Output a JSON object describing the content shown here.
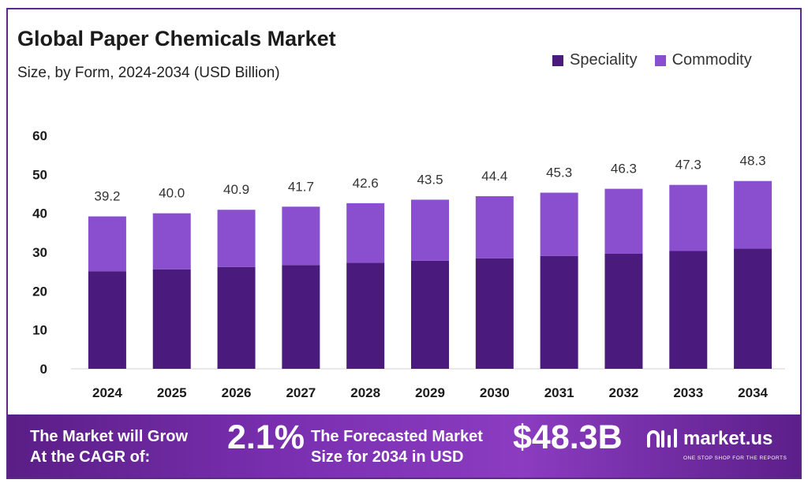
{
  "title": "Global Paper Chemicals Market",
  "subtitle": "Size, by Form, 2024-2034 (USD Billion)",
  "legend": [
    {
      "label": "Speciality",
      "color": "#4a1a7c"
    },
    {
      "label": "Commodity",
      "color": "#8a4fcf"
    }
  ],
  "chart_data": {
    "type": "bar",
    "stacked": true,
    "categories": [
      "2024",
      "2025",
      "2026",
      "2027",
      "2028",
      "2029",
      "2030",
      "2031",
      "2032",
      "2033",
      "2034"
    ],
    "series": [
      {
        "name": "Speciality",
        "color": "#4a1a7c",
        "values": [
          25.1,
          25.6,
          26.2,
          26.7,
          27.3,
          27.8,
          28.4,
          29.0,
          29.6,
          30.3,
          30.9
        ]
      },
      {
        "name": "Commodity",
        "color": "#8a4fcf",
        "values": [
          14.1,
          14.4,
          14.7,
          15.0,
          15.3,
          15.7,
          16.0,
          16.3,
          16.7,
          17.0,
          17.4
        ]
      }
    ],
    "totals": [
      "39.2",
      "40.0",
      "40.9",
      "41.7",
      "42.6",
      "43.5",
      "44.4",
      "45.3",
      "46.3",
      "47.3",
      "48.3"
    ],
    "y_ticks": [
      0,
      10,
      20,
      30,
      40,
      50,
      60
    ],
    "ylim": [
      0,
      60
    ],
    "grid": false,
    "legend_position": "top-right"
  },
  "banner": {
    "cagr_line1": "The Market will Grow",
    "cagr_line2": "At the CAGR of:",
    "cagr_value": "2.1%",
    "forecast_line1": "The Forecasted Market",
    "forecast_line2": "Size for 2034 in USD",
    "forecast_value": "$48.3B",
    "logo_text": "market.us",
    "logo_tagline": "ONE STOP SHOP FOR THE REPORTS"
  }
}
